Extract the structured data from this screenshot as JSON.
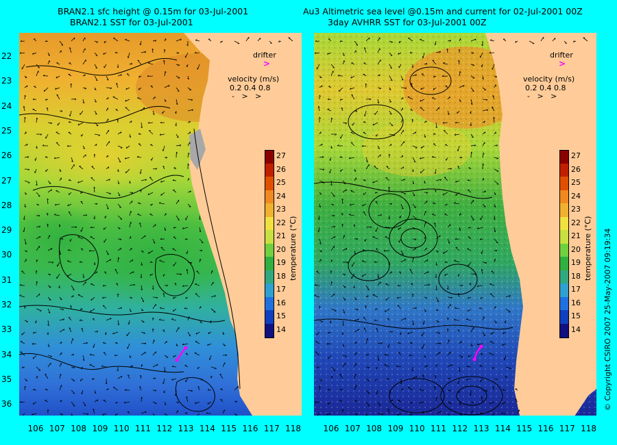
{
  "titles": {
    "left_line1": "BRAN2.1 sfc height @ 0.15m for 03-Jul-2001",
    "left_line2": "BRAN2.1 SST for 03-Jul-2001",
    "right_line1": "Au3 Altimetric sea level  @0.15m and current for 02-Jul-2001 00Z",
    "right_line2": "3day AVHRR SST for 03-Jul-2001 00Z"
  },
  "y_axis_labels": [
    "22",
    "23",
    "24",
    "25",
    "26",
    "27",
    "28",
    "29",
    "30",
    "31",
    "32",
    "33",
    "34",
    "35",
    "36"
  ],
  "x_axis_labels": [
    "106",
    "107",
    "108",
    "109",
    "110",
    "111",
    "112",
    "113",
    "114",
    "115",
    "116",
    "117",
    "118"
  ],
  "legend": {
    "drifter_label": "drifter",
    "velocity_label": "velocity (m/s)",
    "velocity_values": "0.2 0.4 0.8"
  },
  "colorbar": {
    "label": "temperature (°C)",
    "ticks": [
      "27",
      "26",
      "25",
      "24",
      "23",
      "22",
      "21",
      "20",
      "19",
      "18",
      "17",
      "16",
      "15",
      "14"
    ]
  },
  "copyright": "© Copyright CSIRO 2007   25-May-2007 09:19:34",
  "colors": {
    "background": "#00ffff",
    "land": "#ffcc99",
    "drifter": "#ff00ff"
  }
}
